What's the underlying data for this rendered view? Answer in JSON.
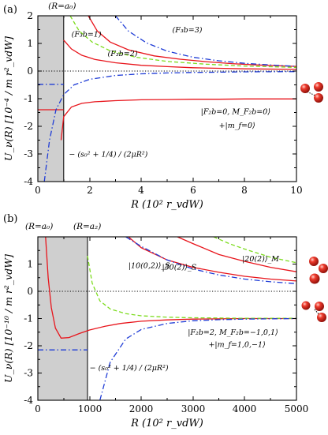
{
  "colors": {
    "red": "#e8141b",
    "green": "#7ddc1f",
    "blue": "#1f3cd6",
    "shade": "#cfcfcf",
    "atom": "#e62a1e"
  },
  "chart_data": [
    {
      "type": "line",
      "panel_label": "(a)",
      "xlabel": "R (10² r_vdW)",
      "ylabel": "U_ν(R) [10⁻⁴ / m r²_vdW]",
      "xlim": [
        0,
        10
      ],
      "ylim": [
        -4,
        2
      ],
      "xticks": [
        "0",
        "2",
        "4",
        "6",
        "8",
        "10"
      ],
      "yticks": [
        "-4",
        "-3",
        "-2",
        "-1",
        "0",
        "1",
        "2"
      ],
      "shaded_region": [
        0,
        1
      ],
      "vertical_marker": {
        "x": 1,
        "label": "(R=a₀)"
      },
      "horizontal_line": {
        "y": 0,
        "style": "dotted"
      },
      "annotations": [
        {
          "text": "(F₃b=1)",
          "x": 1.3,
          "y": 1.25
        },
        {
          "text": "(F₃b=2)",
          "x": 2.7,
          "y": 0.55
        },
        {
          "text": "(F₃b=3)",
          "x": 5.2,
          "y": 1.4
        },
        {
          "text": "|F₂b=0, M_F₂b=0⟩",
          "x": 6.3,
          "y": -1.55
        },
        {
          "text": "+|m_f=0⟩",
          "x": 7.0,
          "y": -2.05
        },
        {
          "text": "− (s₀² + 1/4) / (2μR²)",
          "x": 1.2,
          "y": -3.1
        }
      ],
      "series": [
        {
          "color": "red",
          "style": "solid",
          "x": [
            0.9,
            1.0,
            1.3,
            1.7,
            2.2,
            3,
            4,
            5,
            6,
            7,
            8,
            9,
            10
          ],
          "y": [
            -2.5,
            -1.65,
            -1.3,
            -1.17,
            -1.11,
            -1.07,
            -1.04,
            -1.03,
            -1.02,
            -1.02,
            -1.01,
            -1.01,
            -1.01
          ]
        },
        {
          "color": "red",
          "style": "solid",
          "x": [
            0,
            1.0
          ],
          "y": [
            -1.4,
            -1.4
          ]
        },
        {
          "color": "red",
          "style": "solid",
          "x": [
            1.95,
            2.3,
            2.8,
            3.5,
            4.5,
            5.5,
            6.5,
            7.5,
            8.5,
            10
          ],
          "y": [
            2.0,
            1.45,
            1.05,
            0.77,
            0.55,
            0.43,
            0.34,
            0.27,
            0.22,
            0.17
          ]
        },
        {
          "color": "red",
          "style": "solid",
          "x": [
            1.0,
            1.3,
            1.7,
            2.2,
            3,
            4,
            5,
            6,
            7,
            8,
            10
          ],
          "y": [
            1.12,
            0.8,
            0.57,
            0.42,
            0.3,
            0.21,
            0.16,
            0.12,
            0.1,
            0.08,
            0.06
          ]
        },
        {
          "color": "green",
          "style": "dashed",
          "x": [
            1.25,
            1.6,
            2.1,
            2.8,
            3.8,
            5,
            6.5,
            8,
            10
          ],
          "y": [
            2.0,
            1.45,
            1.05,
            0.73,
            0.5,
            0.35,
            0.25,
            0.18,
            0.13
          ]
        },
        {
          "color": "blue",
          "style": "dash-dot",
          "x": [
            3.0,
            3.5,
            4.2,
            5,
            6,
            7,
            8,
            9,
            10
          ],
          "y": [
            2.0,
            1.45,
            1.02,
            0.72,
            0.5,
            0.37,
            0.28,
            0.22,
            0.17
          ]
        },
        {
          "color": "blue",
          "style": "dash-dot",
          "x": [
            0.25,
            0.45,
            0.7,
            1.0,
            1.4,
            2,
            3,
            4,
            5,
            6,
            7,
            8,
            10
          ],
          "y": [
            -4.0,
            -2.5,
            -1.4,
            -0.85,
            -0.5,
            -0.3,
            -0.16,
            -0.1,
            -0.07,
            -0.05,
            -0.04,
            -0.03,
            -0.02
          ]
        },
        {
          "color": "blue",
          "style": "dash-dot",
          "x": [
            0,
            1.0
          ],
          "y": [
            -0.48,
            -0.48
          ]
        }
      ]
    },
    {
      "type": "line",
      "panel_label": "(b)",
      "xlabel": "R (10² r_vdW)",
      "ylabel": "U_ν(R) [10⁻¹⁰ / m r²_vdW]",
      "xlim": [
        0,
        5000
      ],
      "ylim": [
        -4,
        2
      ],
      "xticks": [
        "0",
        "1000",
        "2000",
        "3000",
        "4000",
        "5000"
      ],
      "yticks": [
        "-4",
        "-3",
        "-2",
        "-1",
        "0",
        "1"
      ],
      "shaded_region": [
        0,
        960
      ],
      "vertical_markers": [
        {
          "x": 0,
          "label": "(R=a₀)"
        },
        {
          "x": 960,
          "label": "(R=a₂)"
        }
      ],
      "horizontal_line": {
        "y": 0,
        "style": "dotted"
      },
      "annotations": [
        {
          "text": "|20(2)⟩_M",
          "x": 3950,
          "y": 1.1
        },
        {
          "text": "|10(0,2)⟩_S",
          "x": 1750,
          "y": 0.85
        },
        {
          "text": "|30(2)⟩_S",
          "x": 2400,
          "y": 0.8
        },
        {
          "text": "|F₂b=2, M_F₂b=−1,0,1⟩",
          "x": 2900,
          "y": -1.6
        },
        {
          "text": "+|m_f=1,0,−1⟩",
          "x": 3300,
          "y": -2.05
        },
        {
          "text": "− (s₀² + 1/4) / (2μR²)",
          "x": 1000,
          "y": -2.9
        }
      ],
      "series": [
        {
          "color": "red",
          "style": "solid",
          "x": [
            150,
            200,
            260,
            340,
            450,
            600,
            800,
            1000,
            1300,
            1600,
            2000,
            2500,
            3000,
            4000,
            5000
          ],
          "y": [
            2.0,
            0.5,
            -0.6,
            -1.35,
            -1.72,
            -1.7,
            -1.55,
            -1.42,
            -1.28,
            -1.18,
            -1.1,
            -1.05,
            -1.02,
            -1.0,
            -1.0
          ]
        },
        {
          "color": "red",
          "style": "solid",
          "x": [
            1750,
            2000,
            2500,
            3000,
            3500,
            4000,
            4500,
            5000
          ],
          "y": [
            2.0,
            1.6,
            1.15,
            0.88,
            0.7,
            0.55,
            0.45,
            0.38
          ]
        },
        {
          "color": "red",
          "style": "solid",
          "x": [
            2700,
            3000,
            3500,
            4000,
            4500,
            5000
          ],
          "y": [
            2.0,
            1.75,
            1.35,
            1.1,
            0.88,
            0.72
          ]
        },
        {
          "color": "green",
          "style": "dashed",
          "x": [
            960,
            1050,
            1200,
            1400,
            1700,
            2000,
            2500,
            3000,
            3500,
            4000,
            5000
          ],
          "y": [
            1.3,
            0.3,
            -0.35,
            -0.65,
            -0.82,
            -0.9,
            -0.95,
            -0.97,
            -0.98,
            -0.99,
            -0.99
          ]
        },
        {
          "color": "green",
          "style": "dashed",
          "x": [
            3400,
            3700,
            4000,
            4500,
            5000
          ],
          "y": [
            2.0,
            1.75,
            1.55,
            1.25,
            1.05
          ]
        },
        {
          "color": "blue",
          "style": "dash-dot",
          "x": [
            1700,
            2000,
            2500,
            3000,
            3500,
            4000,
            4500,
            5000
          ],
          "y": [
            2.0,
            1.65,
            1.15,
            0.82,
            0.6,
            0.45,
            0.35,
            0.28
          ]
        },
        {
          "color": "blue",
          "style": "dash-dot",
          "x": [
            1200,
            1400,
            1700,
            2000,
            2500,
            3000,
            3500,
            4000,
            5000
          ],
          "y": [
            -4.0,
            -2.6,
            -1.75,
            -1.4,
            -1.18,
            -1.08,
            -1.04,
            -1.02,
            -1.0
          ]
        },
        {
          "color": "blue",
          "style": "dash-dot",
          "x": [
            0,
            960
          ],
          "y": [
            -2.15,
            -2.15
          ]
        }
      ]
    }
  ]
}
